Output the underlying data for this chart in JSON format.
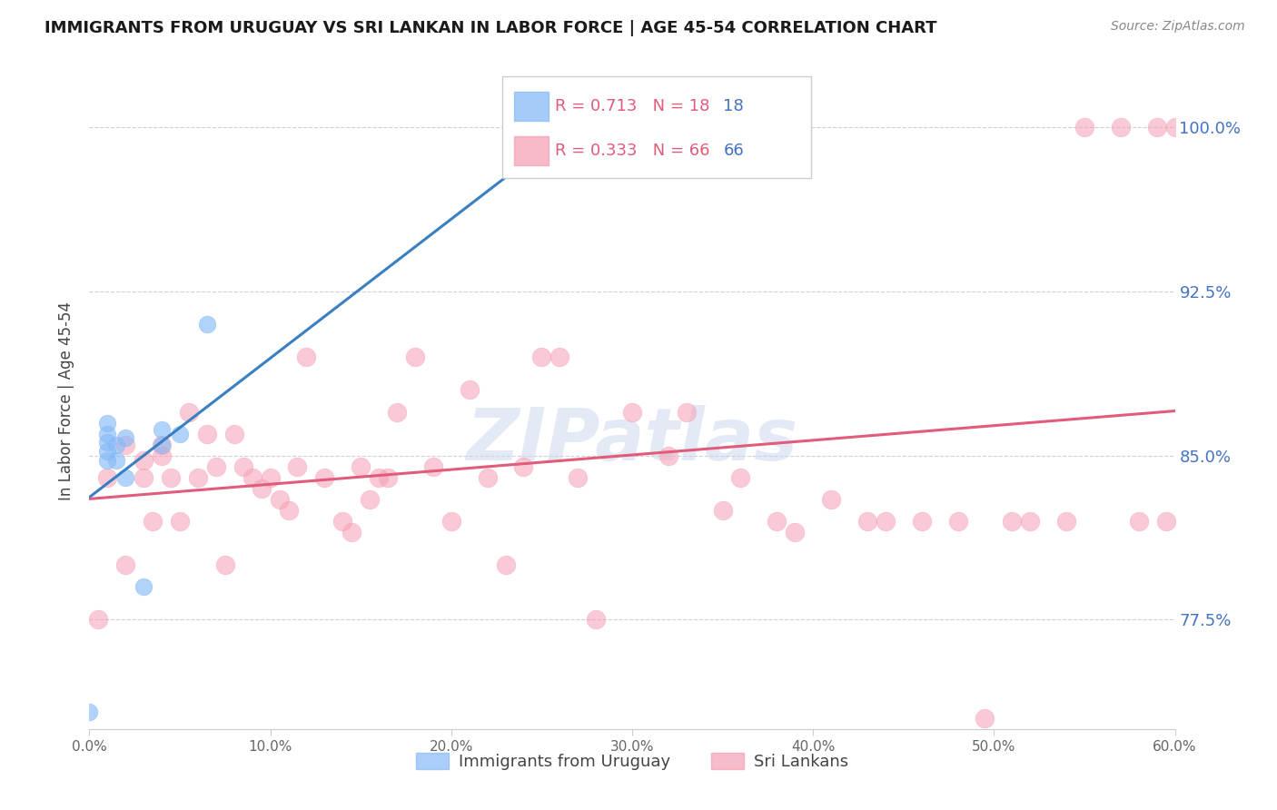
{
  "title": "IMMIGRANTS FROM URUGUAY VS SRI LANKAN IN LABOR FORCE | AGE 45-54 CORRELATION CHART",
  "source": "Source: ZipAtlas.com",
  "ylabel": "In Labor Force | Age 45-54",
  "xlim": [
    0.0,
    0.6
  ],
  "ylim": [
    0.725,
    1.025
  ],
  "xtick_labels": [
    "0.0%",
    "",
    "10.0%",
    "",
    "20.0%",
    "",
    "30.0%",
    "",
    "40.0%",
    "",
    "50.0%",
    "",
    "60.0%"
  ],
  "xtick_vals": [
    0.0,
    0.05,
    0.1,
    0.15,
    0.2,
    0.25,
    0.3,
    0.35,
    0.4,
    0.45,
    0.5,
    0.55,
    0.6
  ],
  "ytick_vals": [
    0.775,
    0.85,
    0.925,
    1.0
  ],
  "ytick_labels": [
    "77.5%",
    "85.0%",
    "92.5%",
    "100.0%"
  ],
  "r_uruguay": 0.713,
  "n_uruguay": 18,
  "r_srilankan": 0.333,
  "n_srilankan": 66,
  "color_uruguay": "#87baf7",
  "color_srilankan": "#f5a0b5",
  "line_color_uruguay": "#3a7fc1",
  "line_color_srilankan": "#e05c7a",
  "legend_label_uruguay": "Immigrants from Uruguay",
  "legend_label_srilankan": "Sri Lankans",
  "watermark": "ZIPatlas",
  "uruguay_x": [
    0.0,
    0.01,
    0.01,
    0.01,
    0.01,
    0.01,
    0.015,
    0.015,
    0.02,
    0.02,
    0.03,
    0.04,
    0.04,
    0.05,
    0.065,
    0.27,
    0.27,
    0.27
  ],
  "uruguay_y": [
    0.733,
    0.848,
    0.852,
    0.856,
    0.86,
    0.865,
    0.848,
    0.855,
    0.84,
    0.858,
    0.79,
    0.855,
    0.862,
    0.86,
    0.91,
    1.0,
    1.0,
    1.0
  ],
  "srilankan_x": [
    0.005,
    0.01,
    0.02,
    0.02,
    0.03,
    0.03,
    0.035,
    0.04,
    0.04,
    0.045,
    0.05,
    0.055,
    0.06,
    0.065,
    0.07,
    0.075,
    0.08,
    0.085,
    0.09,
    0.095,
    0.1,
    0.105,
    0.11,
    0.115,
    0.12,
    0.13,
    0.14,
    0.145,
    0.15,
    0.155,
    0.16,
    0.165,
    0.17,
    0.18,
    0.19,
    0.2,
    0.21,
    0.22,
    0.23,
    0.24,
    0.25,
    0.26,
    0.27,
    0.28,
    0.3,
    0.32,
    0.33,
    0.35,
    0.36,
    0.38,
    0.39,
    0.41,
    0.43,
    0.44,
    0.46,
    0.48,
    0.495,
    0.51,
    0.52,
    0.54,
    0.55,
    0.57,
    0.58,
    0.59,
    0.595,
    0.6
  ],
  "srilankan_y": [
    0.775,
    0.84,
    0.855,
    0.8,
    0.848,
    0.84,
    0.82,
    0.855,
    0.85,
    0.84,
    0.82,
    0.87,
    0.84,
    0.86,
    0.845,
    0.8,
    0.86,
    0.845,
    0.84,
    0.835,
    0.84,
    0.83,
    0.825,
    0.845,
    0.895,
    0.84,
    0.82,
    0.815,
    0.845,
    0.83,
    0.84,
    0.84,
    0.87,
    0.895,
    0.845,
    0.82,
    0.88,
    0.84,
    0.8,
    0.845,
    0.895,
    0.895,
    0.84,
    0.775,
    0.87,
    0.85,
    0.87,
    0.825,
    0.84,
    0.82,
    0.815,
    0.83,
    0.82,
    0.82,
    0.82,
    0.82,
    0.73,
    0.82,
    0.82,
    0.82,
    1.0,
    1.0,
    0.82,
    1.0,
    0.82,
    1.0
  ]
}
